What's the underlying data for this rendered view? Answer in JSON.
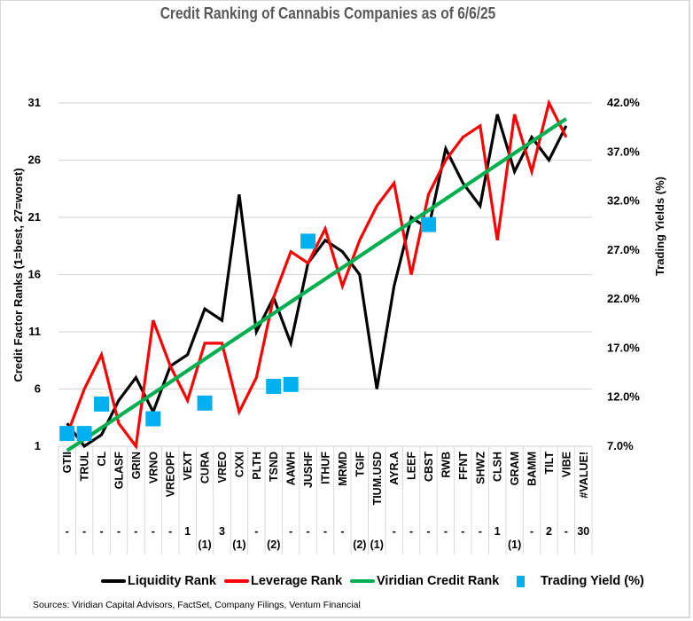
{
  "chart_data": {
    "type": "line",
    "title": "Credit Ranking of Cannabis Companies as of 6/6/25",
    "ylabel": "Credit Factor Ranks (1=best, 27=worst)",
    "y2label": "Trading Yields (%)",
    "ylim": [
      1,
      31
    ],
    "y2lim": [
      7.0,
      42.0
    ],
    "yticks": [
      1,
      6,
      11,
      16,
      21,
      26,
      31
    ],
    "y2ticks": [
      "7.0%",
      "12.0%",
      "17.0%",
      "22.0%",
      "27.0%",
      "32.0%",
      "37.0%",
      "42.0%"
    ],
    "grid": true,
    "legend_position": "bottom",
    "categories": [
      "GTII",
      "TRUL",
      "CL",
      "GLASF",
      "GRIN",
      "VRNO",
      "VREOPF",
      "VEXT",
      "CURA",
      "VREO",
      "CXXI",
      "PLTH",
      "TSND",
      "AAWH",
      "JUSHF",
      "ITHUF",
      "MRMD",
      "TGIF",
      "TIUM.USD",
      "AYR.A",
      "LEEF",
      "CBST",
      "RWB",
      "FFNT",
      "SHWZ",
      "CLSH",
      "GRAM",
      "BAMM",
      "TILT",
      "VIBE",
      "#VALUE!"
    ],
    "category_secondary_labels": [
      "-",
      "-",
      "-",
      "-",
      "-",
      "-",
      "-",
      "1",
      "(1)",
      "3",
      "(1)",
      "-",
      "(2)",
      "-",
      "-",
      "-",
      "-",
      "(2)",
      "(1)",
      "-",
      "-",
      "-",
      "-",
      "-",
      "-",
      "1",
      "(1)",
      "-",
      "2",
      "-",
      "30"
    ],
    "series": [
      {
        "name": "Liquidity Rank",
        "color": "#000000",
        "axis": "left",
        "values": [
          3,
          1,
          2,
          5,
          7,
          4,
          8,
          9,
          13,
          12,
          23,
          11,
          14,
          10,
          17,
          19,
          18,
          16,
          6,
          15,
          21,
          20,
          27,
          24,
          22,
          30,
          25,
          28,
          26,
          29,
          null
        ]
      },
      {
        "name": "Leverage Rank",
        "color": "#ff0000",
        "axis": "left",
        "values": [
          2,
          6,
          9,
          3,
          1,
          12,
          8,
          5,
          10,
          10,
          4,
          7,
          14,
          18,
          17,
          20,
          15,
          19,
          22,
          24,
          16,
          23,
          26,
          28,
          29,
          19,
          30,
          25,
          31,
          28,
          null
        ]
      },
      {
        "name": "Viridian Credit Rank",
        "color": "#00b050",
        "axis": "left",
        "values": [
          1,
          2,
          3,
          4,
          5,
          6,
          7,
          8,
          9,
          10,
          11,
          12,
          13,
          14,
          15,
          16,
          17,
          18,
          19,
          20,
          21,
          22,
          23,
          24,
          25,
          26,
          27,
          28,
          29,
          30,
          null
        ]
      },
      {
        "name": "Trading Yield (%)",
        "color": "#00b0f0",
        "axis": "right",
        "type": "scatter",
        "values": [
          8.3,
          8.3,
          11.3,
          null,
          null,
          9.8,
          null,
          null,
          11.4,
          null,
          null,
          null,
          13.1,
          13.3,
          27.9,
          null,
          null,
          null,
          null,
          null,
          null,
          29.6,
          null,
          null,
          null,
          null,
          null,
          null,
          null,
          null,
          null
        ]
      }
    ]
  },
  "legend": {
    "items": [
      "Liquidity Rank",
      "Leverage Rank",
      "Viridian Credit Rank",
      "Trading Yield (%)"
    ]
  },
  "sources": "Sources: Viridian Capital Advisors, FactSet, Company Filings, Ventum Financial"
}
